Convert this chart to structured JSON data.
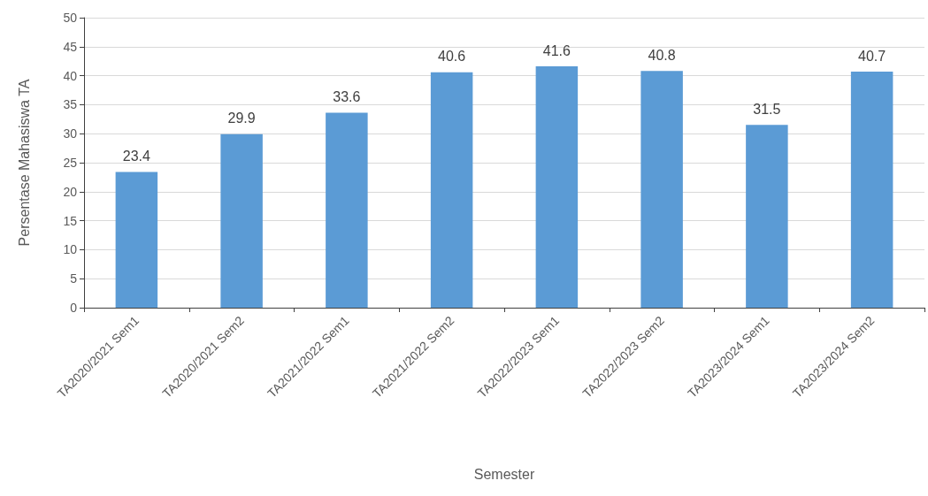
{
  "chart_data": {
    "type": "bar",
    "xlabel": "Semester",
    "ylabel": "Persentase Mahasiswa TA",
    "categories": [
      "TA2020/2021 Sem1",
      "TA2020/2021 Sem2",
      "TA2021/2022 Sem1",
      "TA2021/2022 Sem2",
      "TA2022/2023 Sem1",
      "TA2022/2023 Sem2",
      "TA2023/2024 Sem1",
      "TA2023/2024 Sem2"
    ],
    "values": [
      23.4,
      29.9,
      33.6,
      40.6,
      41.6,
      40.8,
      31.5,
      40.7
    ],
    "color": "#5b9bd5",
    "ylim": [
      0,
      50
    ],
    "yticks": [
      0,
      5,
      10,
      15,
      20,
      25,
      30,
      35,
      40,
      45,
      50
    ],
    "grid": "y",
    "data_labels": true
  }
}
